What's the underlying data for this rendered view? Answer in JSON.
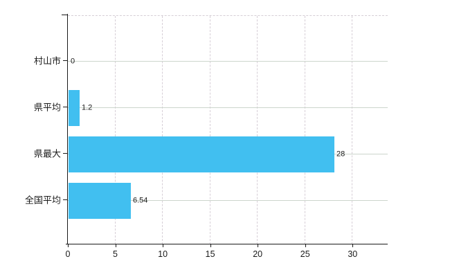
{
  "chart_data": {
    "type": "bar",
    "orientation": "horizontal",
    "title": "",
    "categories": [
      "村山市",
      "県平均",
      "県最大",
      "全国平均"
    ],
    "values": [
      0,
      1.2,
      28,
      6.54
    ],
    "value_labels": [
      "0",
      "1.2",
      "28",
      "6.54"
    ],
    "xlabel": "",
    "ylabel": "",
    "xlim": [
      0,
      33.7
    ],
    "xticks": [
      0,
      5,
      10,
      15,
      20,
      25,
      30
    ],
    "legend": false,
    "grid": true,
    "gridline_style": {
      "vertical": "dashed",
      "horizontal": "solid",
      "top_border": "dashed"
    },
    "colors": {
      "bar": "#41bff0",
      "axis": "#1a1a1a",
      "grid_vertical": "#d6ced6",
      "grid_horizontal": "#ccd5cc",
      "text": "#1a1a1a",
      "background": "#ffffff"
    }
  }
}
